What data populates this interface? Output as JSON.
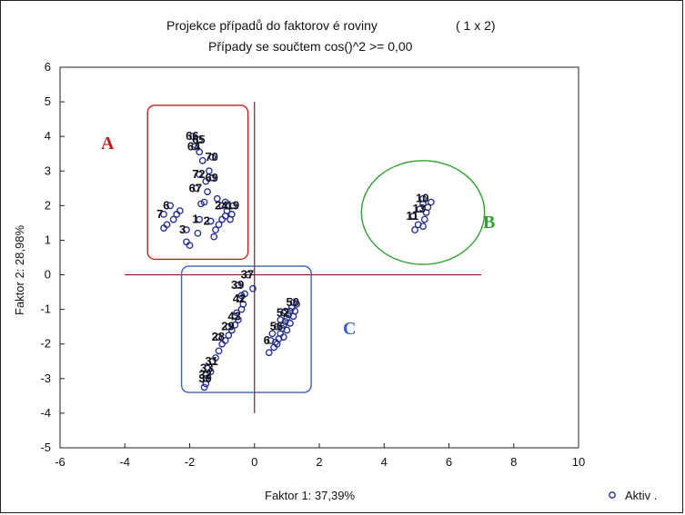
{
  "chart_data": {
    "type": "scatter",
    "title": "Projekce případů do faktorov é roviny",
    "title_suffix": "( 1 x   2)",
    "subtitle": "Případy se součtem cos()^2   >=      0,00",
    "xlabel": "Faktor 1: 37,39%",
    "ylabel": "Faktor 2: 28,98%",
    "xlim": [
      -6,
      10
    ],
    "ylim": [
      -5,
      6
    ],
    "xticks": [
      "-6",
      "-4",
      "-2",
      "0",
      "2",
      "4",
      "6",
      "8",
      "10"
    ],
    "yticks": [
      "6",
      "5",
      "4",
      "3",
      "2",
      "1",
      "0",
      "-1",
      "-2",
      "-3",
      "-4",
      "-5"
    ],
    "grid": false,
    "legend": {
      "placement": "bottom-right",
      "label": "Aktiv ."
    },
    "series": [
      {
        "name": "Aktiv .",
        "marker": "open-circle",
        "color": "#1f2a8c",
        "points": [
          {
            "x": -1.9,
            "y": 4.0,
            "label": "66"
          },
          {
            "x": -1.7,
            "y": 3.9,
            "label": "65"
          },
          {
            "x": -1.85,
            "y": 3.7,
            "label": "64"
          },
          {
            "x": -1.3,
            "y": 3.4,
            "label": "70"
          },
          {
            "x": -1.7,
            "y": 2.9,
            "label": "72"
          },
          {
            "x": -1.3,
            "y": 2.8,
            "label": "69"
          },
          {
            "x": -1.8,
            "y": 2.5,
            "label": "67"
          },
          {
            "x": -2.6,
            "y": 2.0,
            "label": "6"
          },
          {
            "x": -1.0,
            "y": 2.0,
            "label": "24"
          },
          {
            "x": -0.65,
            "y": 2.0,
            "label": "19"
          },
          {
            "x": -2.8,
            "y": 1.75,
            "label": "7"
          },
          {
            "x": -1.7,
            "y": 1.6,
            "label": "1"
          },
          {
            "x": -1.35,
            "y": 1.55,
            "label": "2"
          },
          {
            "x": -2.1,
            "y": 1.3,
            "label": "3"
          },
          {
            "x": 5.2,
            "y": 2.2,
            "label": "10"
          },
          {
            "x": 4.9,
            "y": 1.7,
            "label": "11"
          },
          {
            "x": 5.1,
            "y": 1.9,
            "label": "13"
          },
          {
            "x": -0.2,
            "y": 0.0,
            "label": "37"
          },
          {
            "x": -0.5,
            "y": -0.3,
            "label": "39"
          },
          {
            "x": -0.45,
            "y": -0.7,
            "label": "42"
          },
          {
            "x": -0.6,
            "y": -1.2,
            "label": "43"
          },
          {
            "x": -0.8,
            "y": -1.5,
            "label": "29"
          },
          {
            "x": -1.1,
            "y": -1.8,
            "label": "28"
          },
          {
            "x": -1.3,
            "y": -2.5,
            "label": "31"
          },
          {
            "x": -1.45,
            "y": -2.7,
            "label": "33"
          },
          {
            "x": -1.5,
            "y": -2.9,
            "label": "32"
          },
          {
            "x": -1.5,
            "y": -3.0,
            "label": "30"
          },
          {
            "x": 1.2,
            "y": -0.8,
            "label": "50"
          },
          {
            "x": 0.9,
            "y": -1.1,
            "label": "52"
          },
          {
            "x": 0.7,
            "y": -1.5,
            "label": "56"
          },
          {
            "x": 0.5,
            "y": -1.9,
            "label": "6"
          },
          {
            "x": -2.8,
            "y": 1.35
          },
          {
            "x": -2.7,
            "y": 1.45
          },
          {
            "x": -2.5,
            "y": 1.6
          },
          {
            "x": -2.4,
            "y": 1.75
          },
          {
            "x": -2.3,
            "y": 1.85
          },
          {
            "x": -2.1,
            "y": 0.95
          },
          {
            "x": -2.0,
            "y": 0.85
          },
          {
            "x": -1.75,
            "y": 1.2
          },
          {
            "x": -1.65,
            "y": 2.05
          },
          {
            "x": -1.55,
            "y": 2.1
          },
          {
            "x": -1.45,
            "y": 2.4
          },
          {
            "x": -1.5,
            "y": 2.7
          },
          {
            "x": -1.4,
            "y": 3.0
          },
          {
            "x": -1.6,
            "y": 3.3
          },
          {
            "x": -1.7,
            "y": 3.55
          },
          {
            "x": -1.25,
            "y": 1.1
          },
          {
            "x": -1.2,
            "y": 1.3
          },
          {
            "x": -1.1,
            "y": 1.45
          },
          {
            "x": -1.0,
            "y": 1.6
          },
          {
            "x": -0.9,
            "y": 1.7
          },
          {
            "x": -0.85,
            "y": 1.85
          },
          {
            "x": -0.75,
            "y": 1.6
          },
          {
            "x": -0.7,
            "y": 1.75
          },
          {
            "x": -0.9,
            "y": 2.1
          },
          {
            "x": -1.15,
            "y": 2.2
          },
          {
            "x": 4.95,
            "y": 1.3
          },
          {
            "x": 5.05,
            "y": 1.45
          },
          {
            "x": 5.2,
            "y": 1.4
          },
          {
            "x": 5.25,
            "y": 1.6
          },
          {
            "x": 5.3,
            "y": 1.8
          },
          {
            "x": 5.35,
            "y": 1.95
          },
          {
            "x": 5.2,
            "y": 2.05
          },
          {
            "x": 5.45,
            "y": 2.1
          },
          {
            "x": -0.05,
            "y": -0.4
          },
          {
            "x": -0.3,
            "y": -0.55
          },
          {
            "x": -0.35,
            "y": -0.85
          },
          {
            "x": -0.4,
            "y": -1.0
          },
          {
            "x": -0.5,
            "y": -1.3
          },
          {
            "x": -0.6,
            "y": -1.45
          },
          {
            "x": -0.7,
            "y": -1.6
          },
          {
            "x": -0.8,
            "y": -1.75
          },
          {
            "x": -0.9,
            "y": -1.9
          },
          {
            "x": -1.0,
            "y": -2.0
          },
          {
            "x": -1.1,
            "y": -2.2
          },
          {
            "x": -1.2,
            "y": -2.4
          },
          {
            "x": -1.35,
            "y": -2.8
          },
          {
            "x": -1.5,
            "y": -3.15
          },
          {
            "x": -1.55,
            "y": -3.25
          },
          {
            "x": -0.55,
            "y": -1.1
          },
          {
            "x": -0.4,
            "y": -0.6
          },
          {
            "x": 0.45,
            "y": -2.25
          },
          {
            "x": 0.6,
            "y": -2.1
          },
          {
            "x": 0.65,
            "y": -1.95
          },
          {
            "x": 0.75,
            "y": -1.85
          },
          {
            "x": 0.8,
            "y": -1.7
          },
          {
            "x": 0.85,
            "y": -1.55
          },
          {
            "x": 0.9,
            "y": -1.45
          },
          {
            "x": 0.95,
            "y": -1.35
          },
          {
            "x": 1.0,
            "y": -1.25
          },
          {
            "x": 1.05,
            "y": -1.15
          },
          {
            "x": 1.1,
            "y": -1.05
          },
          {
            "x": 1.15,
            "y": -0.95
          },
          {
            "x": 1.2,
            "y": -1.2
          },
          {
            "x": 1.1,
            "y": -1.4
          },
          {
            "x": 1.0,
            "y": -1.6
          },
          {
            "x": 0.9,
            "y": -1.8
          },
          {
            "x": 0.7,
            "y": -2.0
          },
          {
            "x": 0.55,
            "y": -1.7
          },
          {
            "x": 0.7,
            "y": -1.5
          },
          {
            "x": 0.8,
            "y": -1.3
          },
          {
            "x": 1.3,
            "y": -0.85
          },
          {
            "x": 1.25,
            "y": -1.05
          },
          {
            "x": 0.95,
            "y": -1.05
          }
        ]
      }
    ],
    "reference_lines": [
      {
        "orientation": "vertical",
        "x": 0,
        "from": -4,
        "to": 5,
        "color": "#8b1a1a"
      },
      {
        "orientation": "horizontal",
        "y": 0,
        "from": -4,
        "to": 7,
        "color": "#8b1a1a"
      }
    ],
    "annotations": [
      {
        "label": "A",
        "color": "#c0201a",
        "shape": "rect",
        "xrange": [
          -3.3,
          -0.2
        ],
        "yrange": [
          0.45,
          4.9
        ]
      },
      {
        "label": "B",
        "color": "#2ea02e",
        "shape": "ellipse",
        "center": [
          5.2,
          1.8
        ],
        "radius": [
          1.9,
          1.5
        ]
      },
      {
        "label": "C",
        "color": "#3a5fbf",
        "shape": "rect",
        "xrange": [
          -2.25,
          1.75
        ],
        "yrange": [
          -3.4,
          0.25
        ]
      }
    ]
  }
}
